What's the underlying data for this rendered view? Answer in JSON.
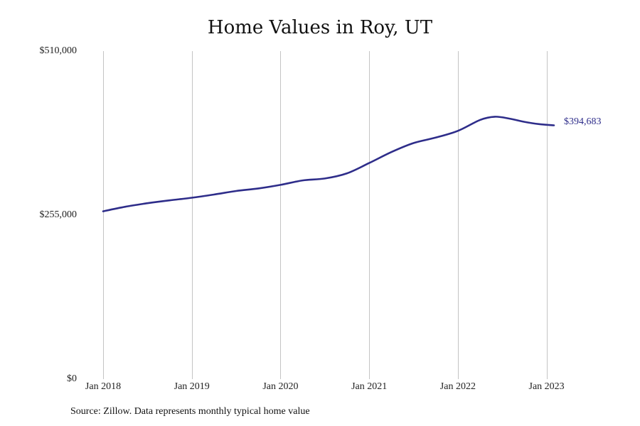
{
  "chart_data": {
    "type": "line",
    "title": "Home Values in Roy, UT",
    "xlabel": "",
    "ylabel": "",
    "ylim": [
      0,
      510000
    ],
    "y_ticks": [
      {
        "value": 0,
        "label": "$0"
      },
      {
        "value": 255000,
        "label": "$255,000"
      },
      {
        "value": 510000,
        "label": "$510,000"
      }
    ],
    "x_ticks": [
      {
        "value": "2018-01",
        "label": "Jan 2018"
      },
      {
        "value": "2019-01",
        "label": "Jan 2019"
      },
      {
        "value": "2020-01",
        "label": "Jan 2020"
      },
      {
        "value": "2021-01",
        "label": "Jan 2021"
      },
      {
        "value": "2022-01",
        "label": "Jan 2022"
      },
      {
        "value": "2023-01",
        "label": "Jan 2023"
      }
    ],
    "xlim": [
      "2018-01",
      "2023-02"
    ],
    "grid": {
      "vertical": true,
      "horizontal": false
    },
    "series": [
      {
        "color": "#2e2d8a",
        "points": [
          {
            "x": "2018-01",
            "y": 261000
          },
          {
            "x": "2018-04",
            "y": 268000
          },
          {
            "x": "2018-07",
            "y": 273500
          },
          {
            "x": "2018-10",
            "y": 278000
          },
          {
            "x": "2019-01",
            "y": 282000
          },
          {
            "x": "2019-04",
            "y": 287000
          },
          {
            "x": "2019-07",
            "y": 292500
          },
          {
            "x": "2019-10",
            "y": 296500
          },
          {
            "x": "2020-01",
            "y": 302000
          },
          {
            "x": "2020-04",
            "y": 309000
          },
          {
            "x": "2020-07",
            "y": 312000
          },
          {
            "x": "2020-10",
            "y": 320000
          },
          {
            "x": "2021-01",
            "y": 336000
          },
          {
            "x": "2021-04",
            "y": 353000
          },
          {
            "x": "2021-07",
            "y": 367000
          },
          {
            "x": "2021-10",
            "y": 375500
          },
          {
            "x": "2022-01",
            "y": 386000
          },
          {
            "x": "2022-04",
            "y": 403000
          },
          {
            "x": "2022-06",
            "y": 408000
          },
          {
            "x": "2022-08",
            "y": 405000
          },
          {
            "x": "2022-10",
            "y": 400000
          },
          {
            "x": "2022-12",
            "y": 396500
          },
          {
            "x": "2023-02",
            "y": 394683
          }
        ]
      }
    ],
    "end_label": "$394,683"
  },
  "footer": {
    "source": "Source: Zillow. Data represents monthly typical home value"
  }
}
